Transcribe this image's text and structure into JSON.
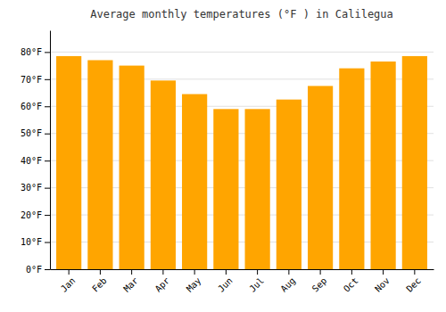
{
  "chart_data": {
    "type": "bar",
    "title": "Average monthly temperatures (°F ) in Calilegua",
    "categories": [
      "Jan",
      "Feb",
      "Mar",
      "Apr",
      "May",
      "Jun",
      "Jul",
      "Aug",
      "Sep",
      "Oct",
      "Nov",
      "Dec"
    ],
    "values": [
      78.5,
      77.0,
      75.0,
      69.5,
      64.5,
      59.0,
      59.0,
      62.5,
      67.5,
      74.0,
      76.5,
      78.5
    ],
    "color": "#FFA500",
    "ylim": [
      0,
      88
    ],
    "yticks": [
      {
        "value": 0,
        "label": "0°F"
      },
      {
        "value": 10,
        "label": "10°F"
      },
      {
        "value": 20,
        "label": "20°F"
      },
      {
        "value": 30,
        "label": "30°F"
      },
      {
        "value": 40,
        "label": "40°F"
      },
      {
        "value": 50,
        "label": "50°F"
      },
      {
        "value": 60,
        "label": "60°F"
      },
      {
        "value": 70,
        "label": "70°F"
      },
      {
        "value": 80,
        "label": "80°F"
      }
    ],
    "grid": true
  }
}
